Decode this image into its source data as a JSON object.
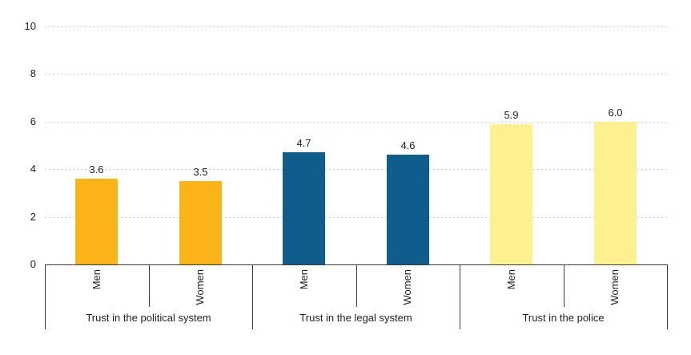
{
  "chart_data": {
    "type": "bar",
    "title": "",
    "xlabel": "",
    "ylabel": "",
    "ylim": [
      0,
      10
    ],
    "yticks": [
      0,
      2,
      4,
      6,
      8,
      10
    ],
    "grid": "horizontal-dashed",
    "legend": "none",
    "value_labels": true,
    "groups": [
      {
        "label": "Trust in the political system",
        "color": "#FBB417",
        "bars": [
          {
            "label": "Men",
            "value": 3.6,
            "display": "3.6"
          },
          {
            "label": "Women",
            "value": 3.5,
            "display": "3.5"
          }
        ]
      },
      {
        "label": "Trust in the legal system",
        "color": "#0E5D8D",
        "bars": [
          {
            "label": "Men",
            "value": 4.7,
            "display": "4.7"
          },
          {
            "label": "Women",
            "value": 4.6,
            "display": "4.6"
          }
        ]
      },
      {
        "label": "Trust in the police",
        "color": "#FDF08E",
        "bars": [
          {
            "label": "Men",
            "value": 5.9,
            "display": "5.9"
          },
          {
            "label": "Women",
            "value": 6.0,
            "display": "6.0"
          }
        ]
      }
    ],
    "colors": {
      "gridline": "#CDCDCD",
      "axis_line": "#3A3A3A",
      "text": "#1F1F1F",
      "background": "#FFFFFF"
    }
  }
}
